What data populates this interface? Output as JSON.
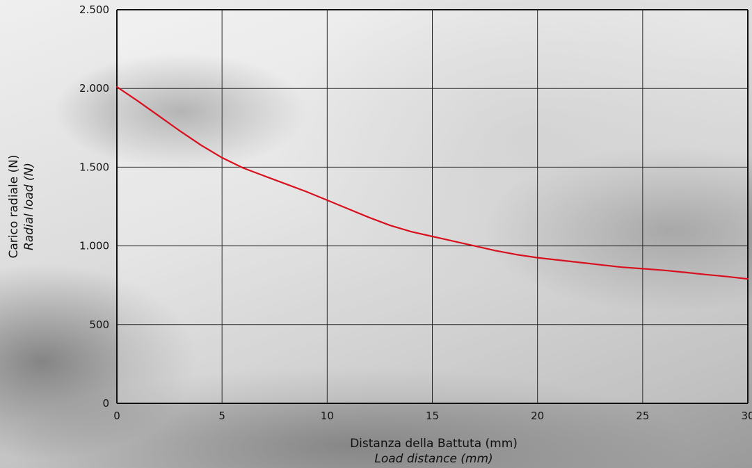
{
  "chart_data": {
    "type": "line",
    "x_label_it": "Distanza della Battuta (mm)",
    "x_label_en": "Load distance (mm)",
    "y_label_it": "Carico radiale (N)",
    "y_label_en": "Radial load (N)",
    "xlim": [
      0,
      30
    ],
    "ylim": [
      0,
      2500
    ],
    "x_ticks": [
      0,
      5,
      10,
      15,
      20,
      25,
      30
    ],
    "x_tick_labels": [
      "0",
      "5",
      "10",
      "15",
      "20",
      "25",
      "30"
    ],
    "y_ticks": [
      0,
      500,
      1000,
      1500,
      2000,
      2500
    ],
    "y_tick_labels": [
      "0",
      "500",
      "1.000",
      "1.500",
      "2.000",
      "2.500"
    ],
    "grid": true,
    "series": [
      {
        "color": "#d8101e",
        "x": [
          0,
          1,
          2,
          3,
          4,
          5,
          6,
          7,
          8,
          9,
          10,
          11,
          12,
          13,
          14,
          15,
          16,
          17,
          18,
          19,
          20,
          21,
          22,
          23,
          24,
          25,
          26,
          27,
          28,
          29,
          30
        ],
        "y": [
          2010,
          1920,
          1825,
          1730,
          1640,
          1560,
          1495,
          1445,
          1395,
          1345,
          1290,
          1235,
          1180,
          1130,
          1090,
          1060,
          1030,
          1000,
          970,
          945,
          925,
          910,
          895,
          880,
          865,
          855,
          845,
          832,
          818,
          805,
          790
        ]
      }
    ]
  }
}
